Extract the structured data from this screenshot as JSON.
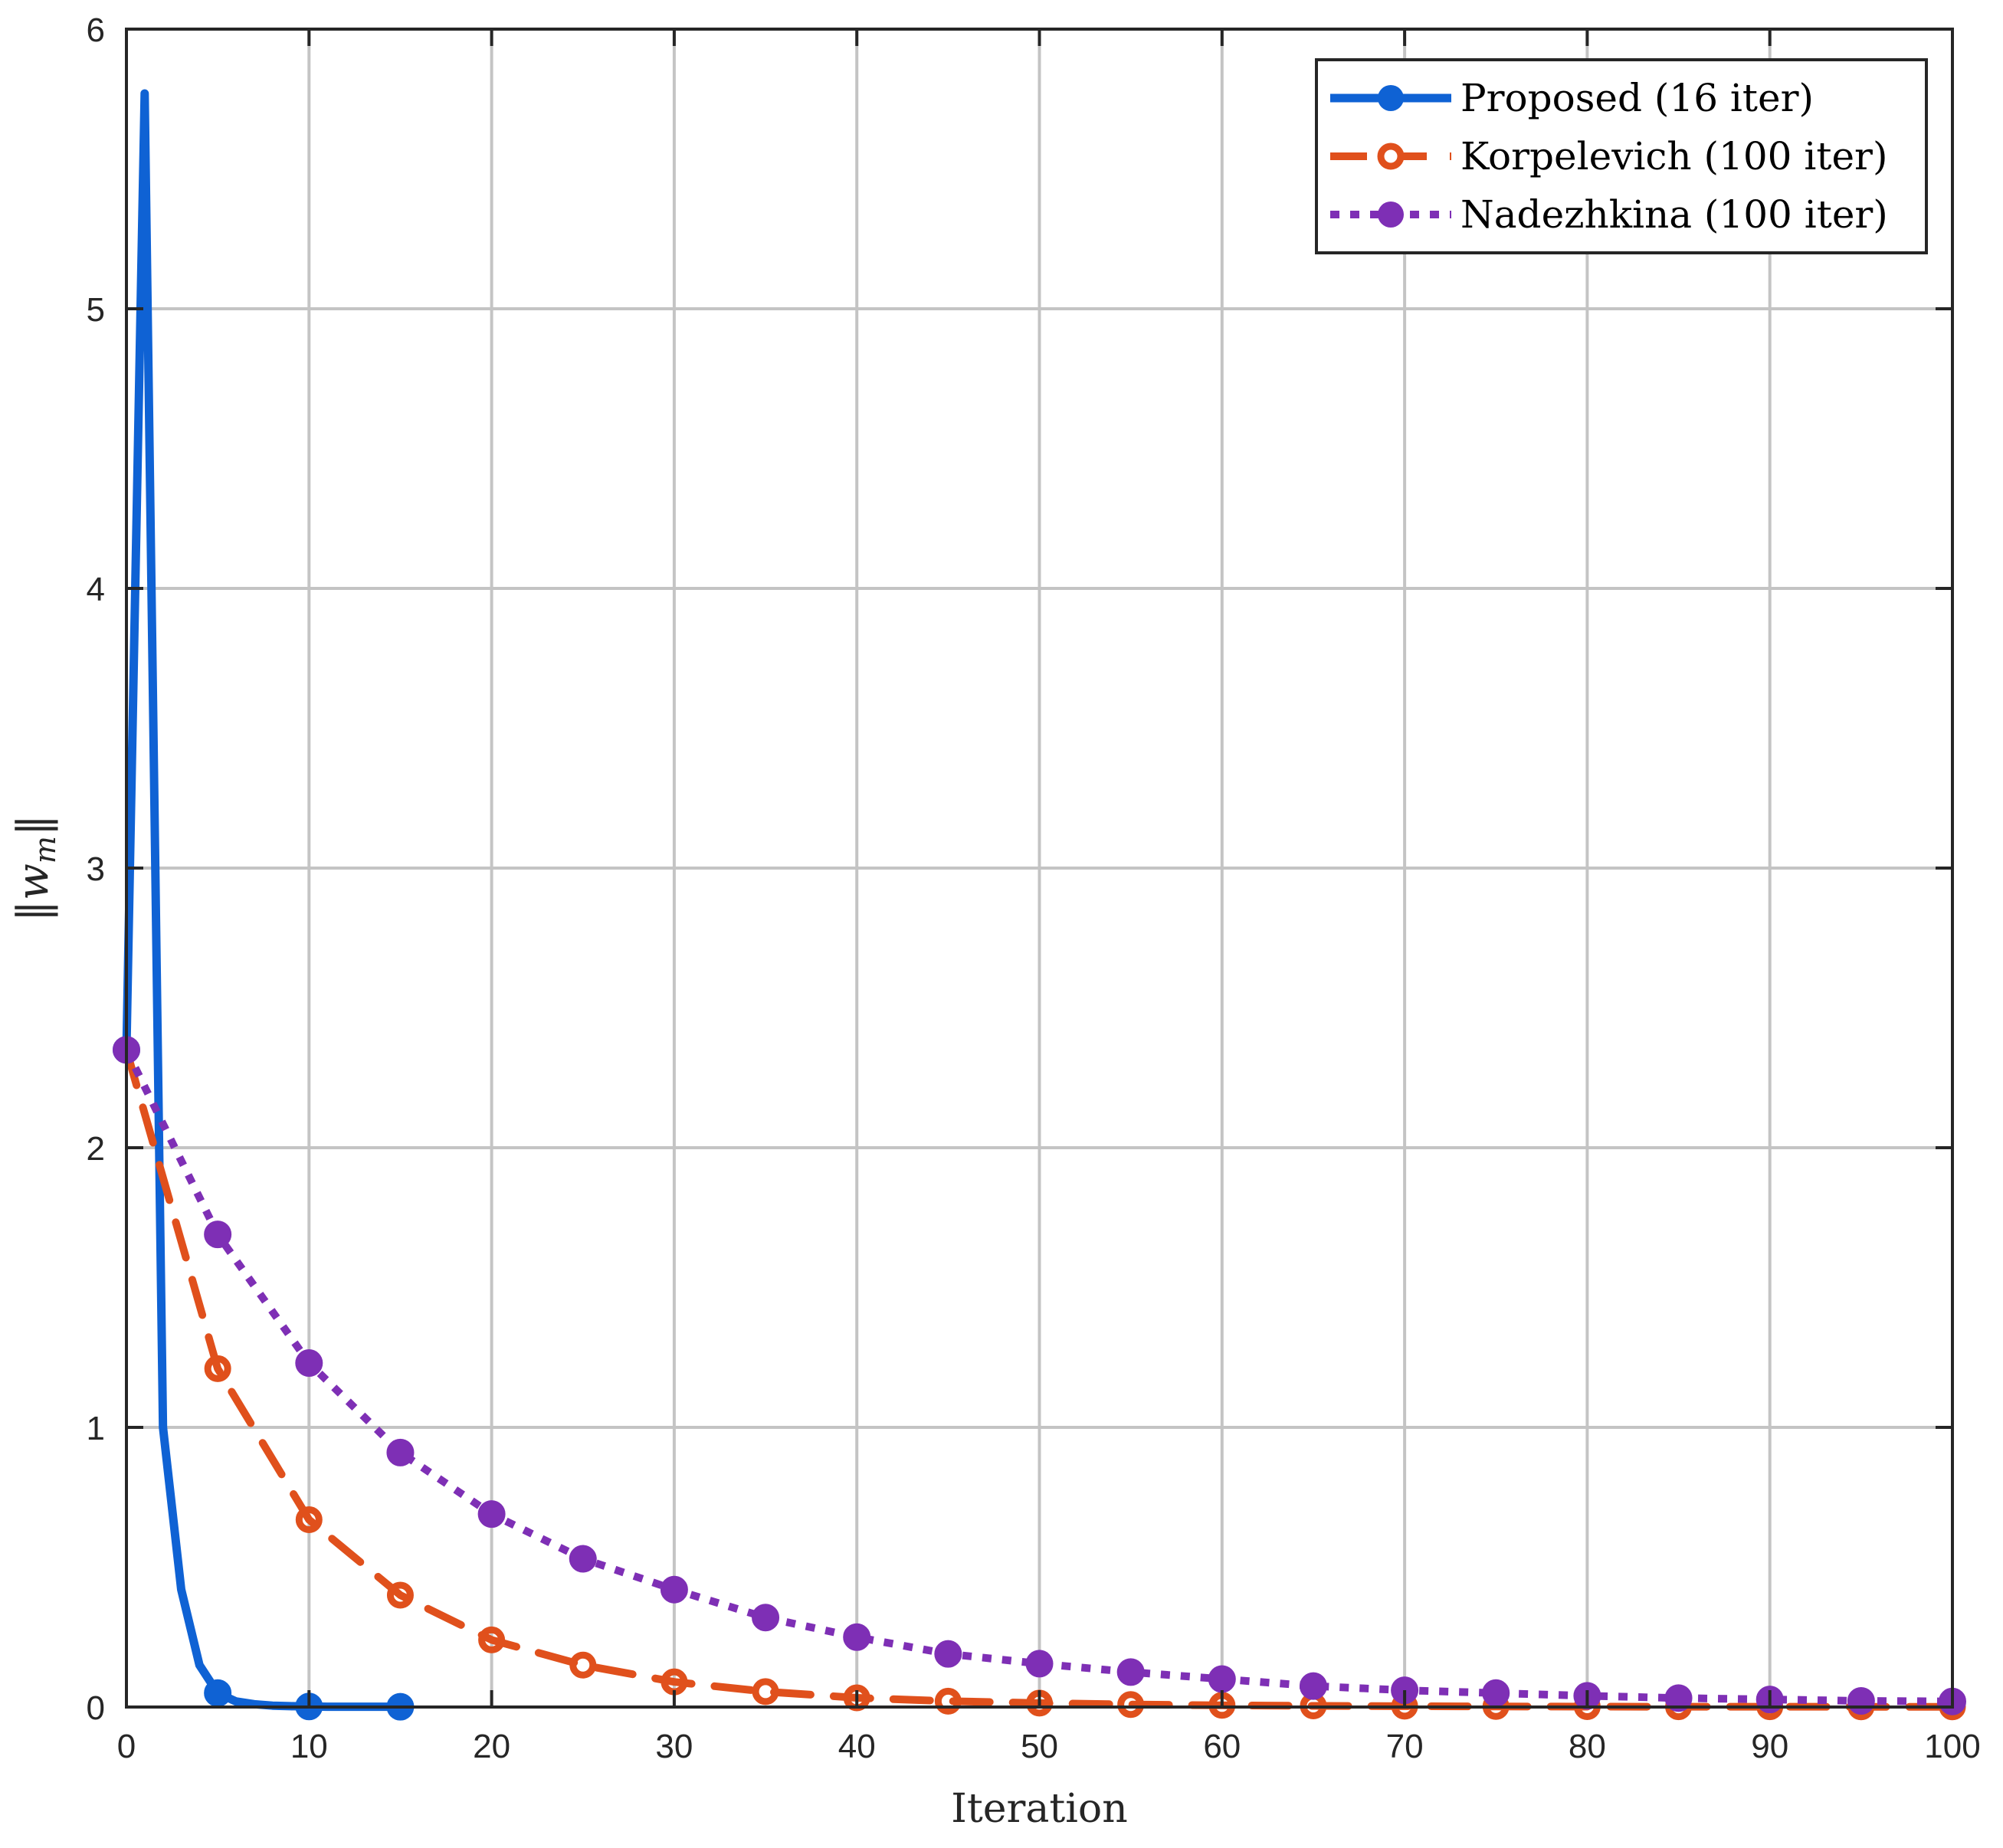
{
  "chart_data": {
    "type": "line",
    "title": "",
    "xlabel": "Iteration",
    "ylabel": "||w_m||",
    "ylabel_display": {
      "bars": "‖",
      "var": "w",
      "sub": "m"
    },
    "xlim": [
      0,
      100
    ],
    "ylim": [
      0,
      6
    ],
    "xticks": [
      0,
      10,
      20,
      30,
      40,
      50,
      60,
      70,
      80,
      90,
      100
    ],
    "yticks": [
      0,
      1,
      2,
      3,
      4,
      5,
      6
    ],
    "grid": true,
    "legend_position": "top-right",
    "series": [
      {
        "name": "Proposed (16 iter)",
        "color": "#0f62d4",
        "line_style": "solid",
        "marker": "filled-circle",
        "marker_every": 5,
        "x": [
          0,
          1,
          2,
          3,
          4,
          5,
          6,
          7,
          8,
          9,
          10,
          11,
          12,
          13,
          14,
          15
        ],
        "y": [
          2.35,
          5.77,
          1.0,
          0.42,
          0.15,
          0.05,
          0.02,
          0.01,
          0.005,
          0.003,
          0.002,
          0.001,
          0.001,
          0.001,
          0.001,
          0.001
        ]
      },
      {
        "name": "Korpelevich (100 iter)",
        "color": "#e0501c",
        "line_style": "dashed",
        "marker": "open-circle",
        "marker_every": 5,
        "x": [
          0,
          5,
          10,
          15,
          20,
          25,
          30,
          35,
          40,
          45,
          50,
          55,
          60,
          65,
          70,
          75,
          80,
          85,
          90,
          95,
          100
        ],
        "y": [
          2.35,
          1.21,
          0.67,
          0.4,
          0.24,
          0.15,
          0.09,
          0.055,
          0.033,
          0.021,
          0.014,
          0.009,
          0.006,
          0.004,
          0.003,
          0.002,
          0.0015,
          0.001,
          0.001,
          0.0008,
          0.0006
        ]
      },
      {
        "name": "Nadezhkina (100 iter)",
        "color": "#7e2fb5",
        "line_style": "dotted",
        "marker": "filled-circle",
        "marker_every": 5,
        "x": [
          0,
          5,
          10,
          15,
          20,
          25,
          30,
          35,
          40,
          45,
          50,
          55,
          60,
          65,
          70,
          75,
          80,
          85,
          90,
          95,
          100
        ],
        "y": [
          2.35,
          1.69,
          1.23,
          0.91,
          0.69,
          0.53,
          0.42,
          0.32,
          0.25,
          0.19,
          0.155,
          0.125,
          0.1,
          0.075,
          0.06,
          0.05,
          0.04,
          0.032,
          0.027,
          0.022,
          0.02
        ]
      }
    ]
  }
}
